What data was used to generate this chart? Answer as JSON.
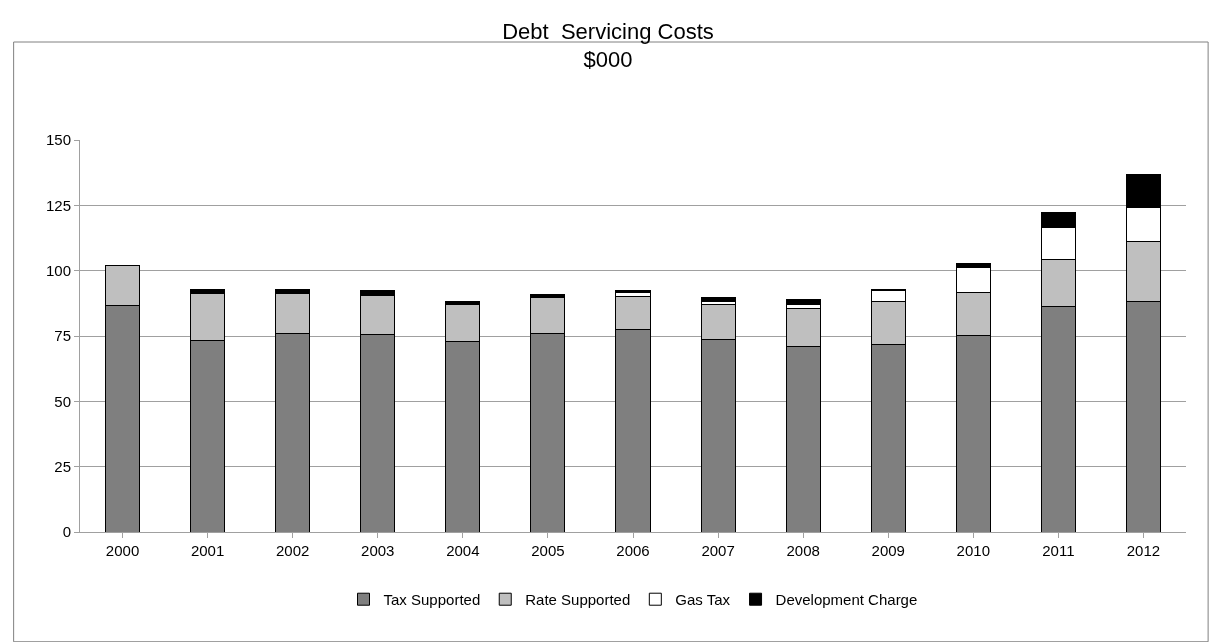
{
  "chart_data": {
    "type": "bar",
    "title": "Debt  Servicing Costs",
    "subtitle": "$000",
    "categories": [
      "2000",
      "2001",
      "2002",
      "2003",
      "2004",
      "2005",
      "2006",
      "2007",
      "2008",
      "2009",
      "2010",
      "2011",
      "2012"
    ],
    "stacked": true,
    "ylim": [
      0,
      150
    ],
    "yticks": [
      0,
      25,
      50,
      75,
      100,
      125,
      150
    ],
    "grid": "y",
    "legend": "bottom",
    "series": [
      {
        "name": "Tax Supported",
        "color": "#7f7f7f",
        "values": [
          86.5,
          73.3,
          76.1,
          75.4,
          72.8,
          76.1,
          77.3,
          73.6,
          70.9,
          71.7,
          75.1,
          86.3,
          88.3
        ]
      },
      {
        "name": "Rate Supported",
        "color": "#bfbfbf",
        "values": [
          15.3,
          17.8,
          15.0,
          15.0,
          14.3,
          13.7,
          12.9,
          13.3,
          14.6,
          16.5,
          16.5,
          17.8,
          22.9
        ]
      },
      {
        "name": "Gas Tax",
        "color": "#ffffff",
        "values": [
          0,
          0.4,
          0.4,
          0.4,
          0.2,
          0.3,
          1.4,
          1.3,
          1.7,
          4.3,
          9.7,
          12.4,
          13.1
        ]
      },
      {
        "name": "Development Charge",
        "color": "#000000",
        "values": [
          0,
          1.4,
          1.4,
          1.5,
          0.8,
          0.6,
          0.9,
          1.5,
          1.9,
          0.3,
          1.5,
          5.7,
          12.5
        ]
      }
    ]
  }
}
